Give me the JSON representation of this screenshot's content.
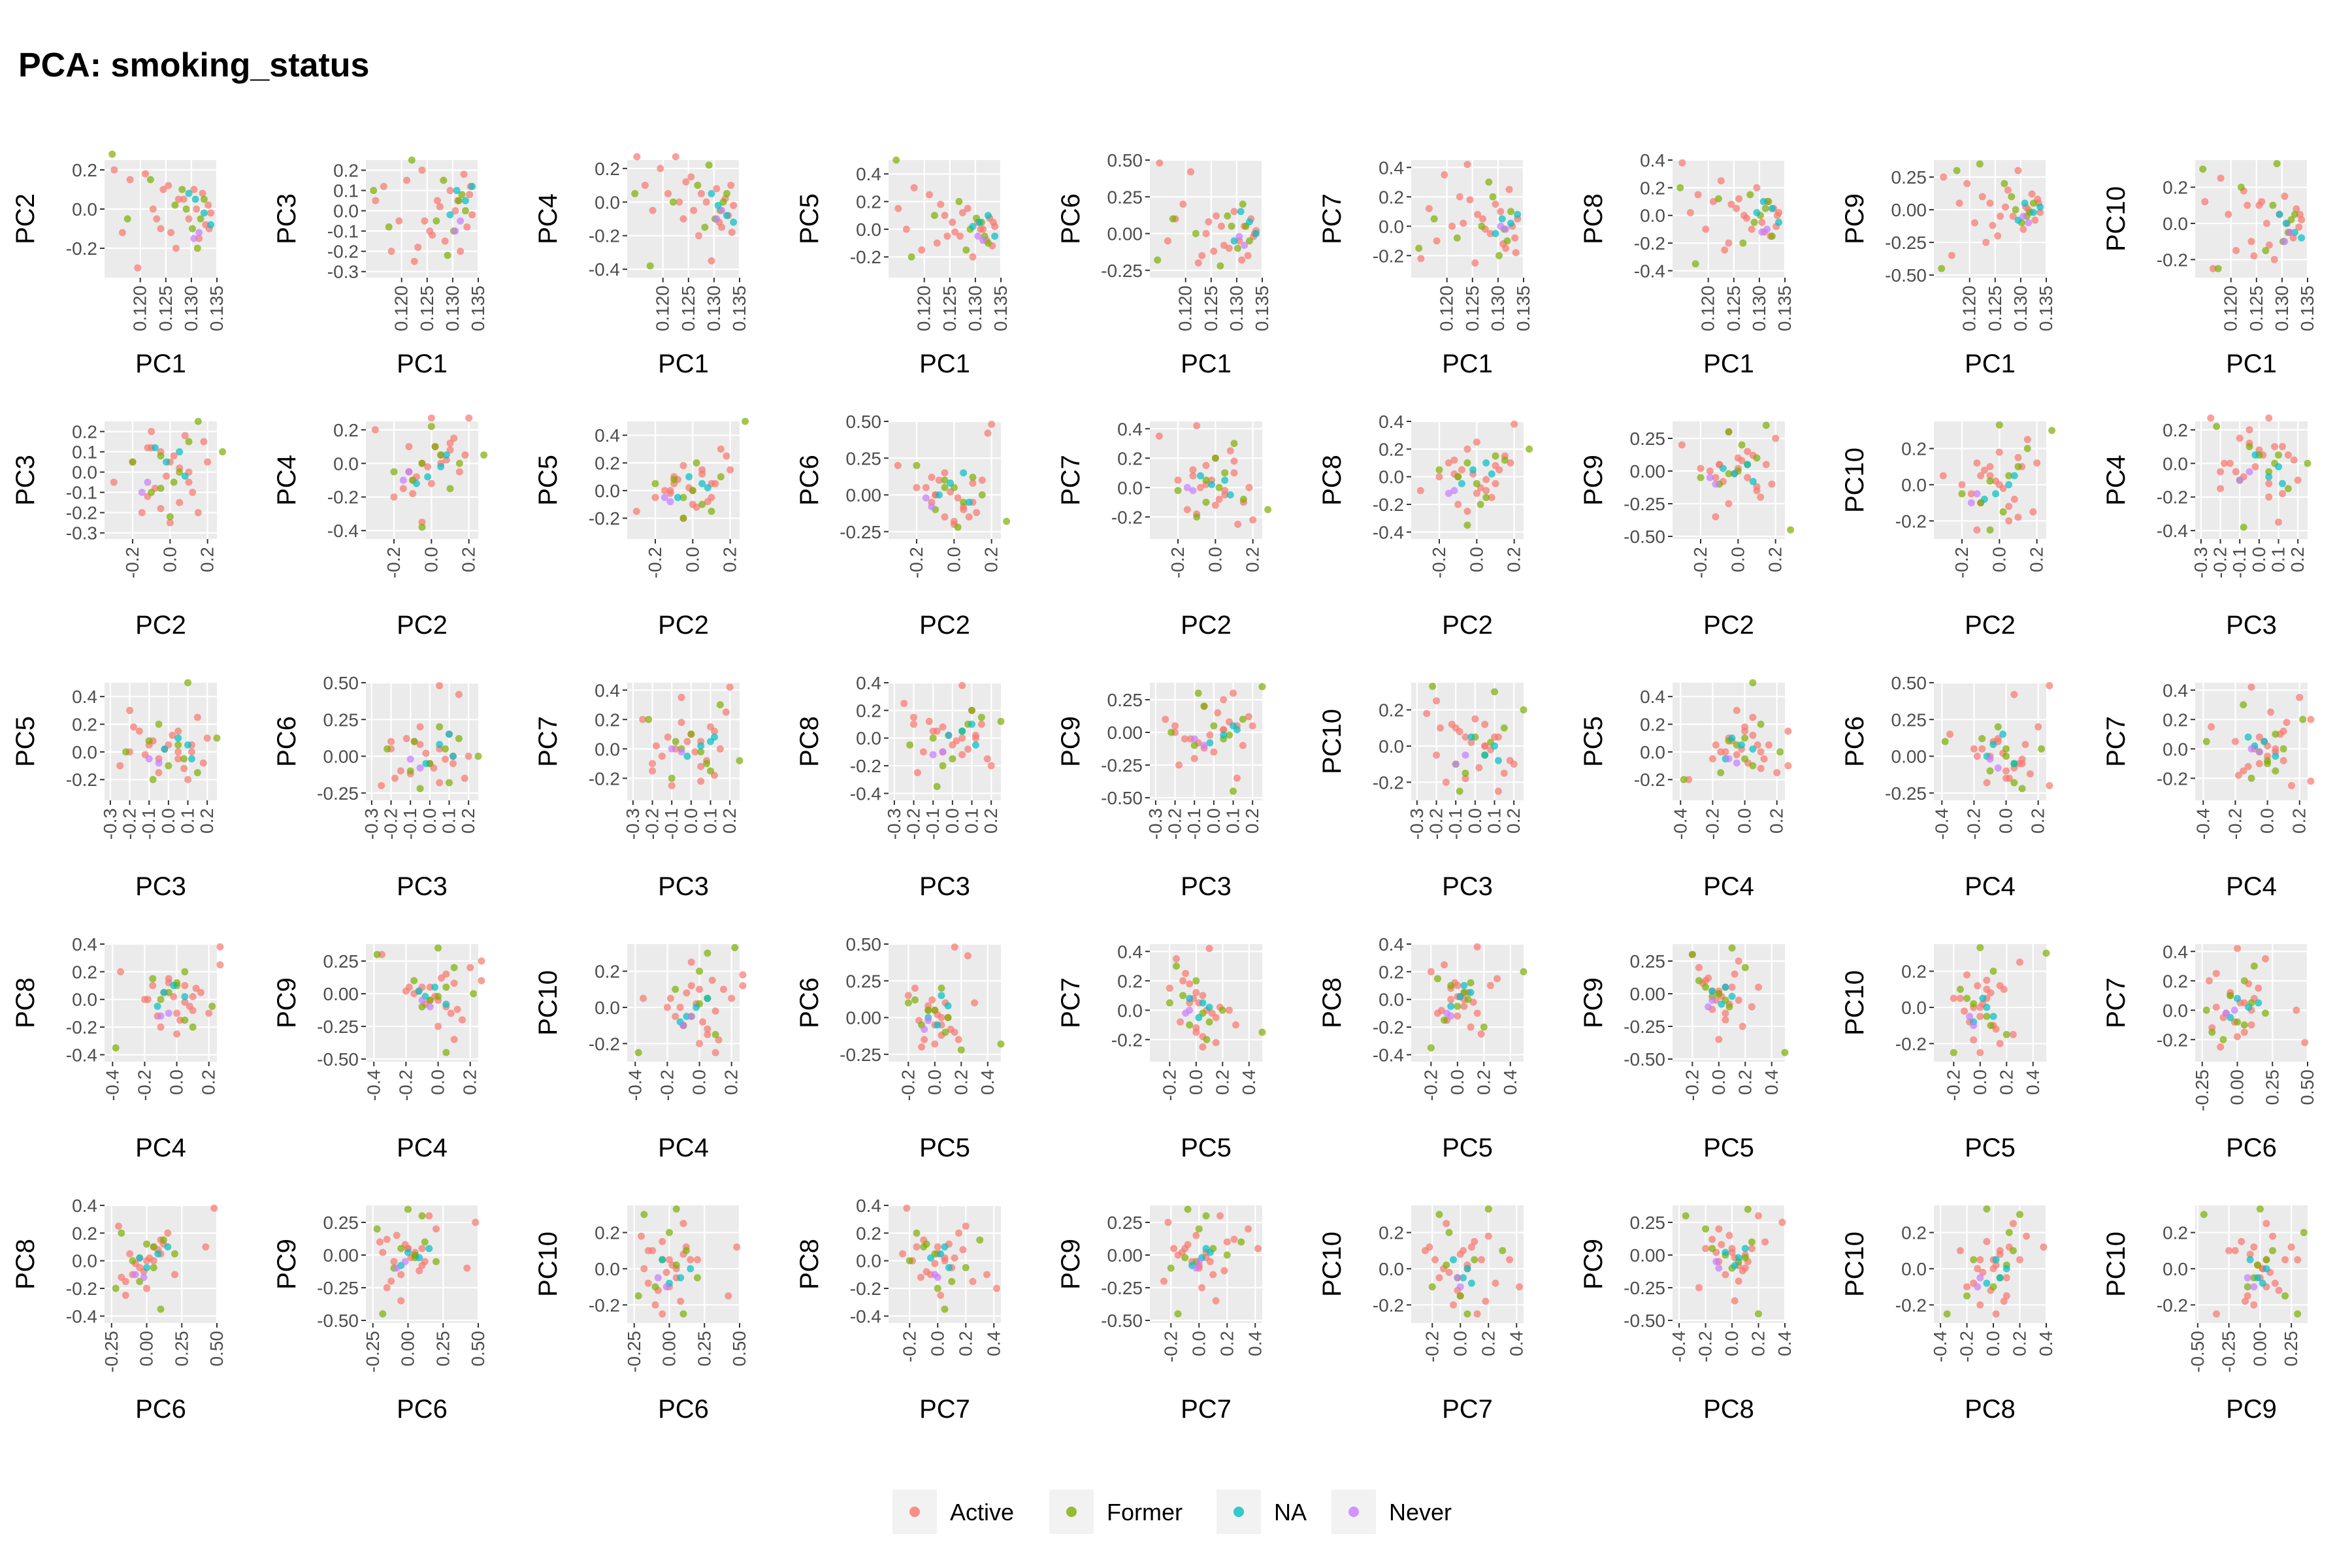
{
  "title": "PCA: smoking_status",
  "legend": {
    "placement": "bottom",
    "items": [
      {
        "label": "Active",
        "color": "#F8766D"
      },
      {
        "label": "Former",
        "color": "#7CAE00"
      },
      {
        "label": "NA",
        "color": "#00BFC4"
      },
      {
        "label": "Never",
        "color": "#C77CFF"
      }
    ]
  },
  "chart_data": {
    "type": "scatter",
    "layout": "pairs-grid",
    "grid": true,
    "panel_background": "#EBEBEB",
    "axes": {
      "PC1": {
        "range": [
          0.113,
          0.135
        ],
        "ticks": [
          "0.120",
          "0.125",
          "0.130",
          "0.135"
        ]
      },
      "PC2": {
        "range": [
          -0.35,
          0.25
        ],
        "ticks": [
          "-0.2",
          "0.0",
          "0.2"
        ]
      },
      "PC3": {
        "range": [
          -0.33,
          0.25
        ],
        "ticks": [
          "-0.3",
          "-0.2",
          "-0.1",
          "0.0",
          "0.1",
          "0.2"
        ]
      },
      "PC4": {
        "range": [
          -0.45,
          0.25
        ],
        "ticks": [
          "-0.4",
          "-0.2",
          "0.0",
          "0.2"
        ]
      },
      "PC5": {
        "range": [
          -0.35,
          0.5
        ],
        "ticks": [
          "-0.2",
          "0.0",
          "0.2",
          "0.4"
        ]
      },
      "PC6": {
        "range": [
          -0.3,
          0.5
        ],
        "ticks": [
          "-0.25",
          "0.00",
          "0.25",
          "0.50"
        ]
      },
      "PC7": {
        "range": [
          -0.35,
          0.45
        ],
        "ticks": [
          "-0.2",
          "0.0",
          "0.2",
          "0.4"
        ]
      },
      "PC8": {
        "range": [
          -0.45,
          0.4
        ],
        "ticks": [
          "-0.4",
          "-0.2",
          "0.0",
          "0.2",
          "0.4"
        ]
      },
      "PC9": {
        "range": [
          -0.52,
          0.38
        ],
        "ticks": [
          "-0.50",
          "-0.25",
          "0.00",
          "0.25"
        ]
      },
      "PC10": {
        "range": [
          -0.3,
          0.35
        ],
        "ticks": [
          "-0.2",
          "0.0",
          "0.2"
        ]
      }
    },
    "panels": [
      {
        "x": "PC1",
        "y": "PC2"
      },
      {
        "x": "PC1",
        "y": "PC3"
      },
      {
        "x": "PC1",
        "y": "PC4"
      },
      {
        "x": "PC1",
        "y": "PC5"
      },
      {
        "x": "PC1",
        "y": "PC6"
      },
      {
        "x": "PC1",
        "y": "PC7"
      },
      {
        "x": "PC1",
        "y": "PC8"
      },
      {
        "x": "PC1",
        "y": "PC9"
      },
      {
        "x": "PC1",
        "y": "PC10"
      },
      {
        "x": "PC2",
        "y": "PC3"
      },
      {
        "x": "PC2",
        "y": "PC4"
      },
      {
        "x": "PC2",
        "y": "PC5"
      },
      {
        "x": "PC2",
        "y": "PC6"
      },
      {
        "x": "PC2",
        "y": "PC7"
      },
      {
        "x": "PC2",
        "y": "PC8"
      },
      {
        "x": "PC2",
        "y": "PC9"
      },
      {
        "x": "PC2",
        "y": "PC10"
      },
      {
        "x": "PC3",
        "y": "PC4"
      },
      {
        "x": "PC3",
        "y": "PC5"
      },
      {
        "x": "PC3",
        "y": "PC6"
      },
      {
        "x": "PC3",
        "y": "PC7"
      },
      {
        "x": "PC3",
        "y": "PC8"
      },
      {
        "x": "PC3",
        "y": "PC9"
      },
      {
        "x": "PC3",
        "y": "PC10"
      },
      {
        "x": "PC4",
        "y": "PC5"
      },
      {
        "x": "PC4",
        "y": "PC6"
      },
      {
        "x": "PC4",
        "y": "PC7"
      },
      {
        "x": "PC4",
        "y": "PC8"
      },
      {
        "x": "PC4",
        "y": "PC9"
      },
      {
        "x": "PC4",
        "y": "PC10"
      },
      {
        "x": "PC5",
        "y": "PC6"
      },
      {
        "x": "PC5",
        "y": "PC7"
      },
      {
        "x": "PC5",
        "y": "PC8"
      },
      {
        "x": "PC5",
        "y": "PC9"
      },
      {
        "x": "PC5",
        "y": "PC10"
      },
      {
        "x": "PC6",
        "y": "PC7"
      },
      {
        "x": "PC6",
        "y": "PC8"
      },
      {
        "x": "PC6",
        "y": "PC9"
      },
      {
        "x": "PC6",
        "y": "PC10"
      },
      {
        "x": "PC7",
        "y": "PC8"
      },
      {
        "x": "PC7",
        "y": "PC9"
      },
      {
        "x": "PC7",
        "y": "PC10"
      },
      {
        "x": "PC8",
        "y": "PC9"
      },
      {
        "x": "PC8",
        "y": "PC10"
      },
      {
        "x": "PC9",
        "y": "PC10"
      }
    ],
    "samples": [
      {
        "g": "Active",
        "PC1": 0.1149,
        "PC2": 0.2,
        "PC3": 0.05,
        "PC4": 0.27,
        "PC5": 0.15,
        "PC6": 0.48,
        "PC7": -0.22,
        "PC8": 0.38,
        "PC9": 0.25,
        "PC10": 0.12
      },
      {
        "g": "Active",
        "PC1": 0.1165,
        "PC2": -0.12,
        "PC3": 0.12,
        "PC4": 0.1,
        "PC5": 0.0,
        "PC6": -0.05,
        "PC7": 0.12,
        "PC8": 0.02,
        "PC9": -0.35,
        "PC10": -0.25
      },
      {
        "g": "Active",
        "PC1": 0.118,
        "PC2": 0.15,
        "PC3": -0.2,
        "PC4": -0.05,
        "PC5": 0.3,
        "PC6": 0.1,
        "PC7": -0.1,
        "PC8": 0.15,
        "PC9": 0.05,
        "PC10": 0.25
      },
      {
        "g": "Active",
        "PC1": 0.1195,
        "PC2": -0.3,
        "PC3": -0.05,
        "PC4": 0.2,
        "PC5": -0.15,
        "PC6": 0.2,
        "PC7": 0.35,
        "PC8": -0.1,
        "PC9": 0.2,
        "PC10": 0.05
      },
      {
        "g": "Active",
        "PC1": 0.121,
        "PC2": 0.18,
        "PC3": 0.15,
        "PC4": 0.05,
        "PC5": 0.25,
        "PC6": 0.42,
        "PC7": 0.0,
        "PC8": 0.1,
        "PC9": -0.1,
        "PC10": -0.15
      },
      {
        "g": "Active",
        "PC1": 0.1225,
        "PC2": 0.0,
        "PC3": -0.25,
        "PC4": 0.27,
        "PC5": -0.1,
        "PC6": -0.2,
        "PC7": 0.2,
        "PC8": 0.25,
        "PC9": 0.1,
        "PC10": 0.18
      },
      {
        "g": "Active",
        "PC1": 0.124,
        "PC2": -0.1,
        "PC3": 0.2,
        "PC4": -0.1,
        "PC5": 0.1,
        "PC6": 0.0,
        "PC7": 0.42,
        "PC8": -0.2,
        "PC9": 0.05,
        "PC10": -0.1
      },
      {
        "g": "Active",
        "PC1": 0.1255,
        "PC2": 0.12,
        "PC3": -0.1,
        "PC4": 0.15,
        "PC5": 0.05,
        "PC6": -0.12,
        "PC7": -0.25,
        "PC8": 0.05,
        "PC9": -0.2,
        "PC10": 0.1
      },
      {
        "g": "Active",
        "PC1": 0.127,
        "PC2": -0.2,
        "PC3": 0.05,
        "PC4": -0.2,
        "PC5": -0.05,
        "PC6": 0.05,
        "PC7": 0.05,
        "PC8": 0.0,
        "PC9": 0.02,
        "PC10": 0.0
      },
      {
        "g": "Active",
        "PC1": 0.1285,
        "PC2": 0.05,
        "PC3": -0.15,
        "PC4": 0.0,
        "PC5": 0.15,
        "PC6": -0.1,
        "PC7": -0.05,
        "PC8": -0.1,
        "PC9": -0.05,
        "PC10": -0.2
      },
      {
        "g": "Active",
        "PC1": 0.1295,
        "PC2": -0.05,
        "PC3": 0.1,
        "PC4": -0.35,
        "PC5": -0.2,
        "PC6": 0.15,
        "PC7": 0.15,
        "PC8": 0.2,
        "PC9": 0.3,
        "PC10": 0.05
      },
      {
        "g": "Active",
        "PC1": 0.1305,
        "PC2": 0.1,
        "PC3": 0.0,
        "PC4": 0.08,
        "PC5": 0.05,
        "PC6": -0.05,
        "PC7": 0.1,
        "PC8": -0.05,
        "PC9": -0.15,
        "PC10": 0.15
      },
      {
        "g": "Active",
        "PC1": 0.1315,
        "PC2": -0.15,
        "PC3": -0.2,
        "PC4": -0.15,
        "PC5": 0.0,
        "PC6": 0.05,
        "PC7": -0.15,
        "PC8": 0.1,
        "PC9": 0.0,
        "PC10": -0.05
      },
      {
        "g": "Active",
        "PC1": 0.1322,
        "PC2": 0.08,
        "PC3": 0.18,
        "PC4": 0.02,
        "PC5": -0.08,
        "PC6": -0.15,
        "PC7": 0.25,
        "PC8": -0.15,
        "PC9": 0.12,
        "PC10": -0.08
      },
      {
        "g": "Active",
        "PC1": 0.1328,
        "PC2": -0.08,
        "PC3": -0.08,
        "PC4": -0.08,
        "PC5": 0.08,
        "PC6": 0.1,
        "PC7": 0.0,
        "PC8": 0.05,
        "PC9": -0.08,
        "PC10": 0.08
      },
      {
        "g": "Active",
        "PC1": 0.1333,
        "PC2": 0.02,
        "PC3": 0.08,
        "PC4": 0.1,
        "PC5": -0.12,
        "PC6": -0.02,
        "PC7": -0.08,
        "PC8": -0.08,
        "PC9": 0.08,
        "PC10": -0.02
      },
      {
        "g": "Active",
        "PC1": 0.1338,
        "PC2": -0.02,
        "PC3": -0.02,
        "PC4": -0.02,
        "PC5": 0.02,
        "PC6": 0.02,
        "PC7": 0.05,
        "PC8": 0.02,
        "PC9": -0.02,
        "PC10": 0.02
      },
      {
        "g": "Active",
        "PC1": 0.1275,
        "PC2": 0.05,
        "PC3": 0.02,
        "PC4": 0.05,
        "PC5": 0.12,
        "PC6": -0.08,
        "PC7": -0.02,
        "PC8": -0.02,
        "PC9": 0.15,
        "PC10": -0.12
      },
      {
        "g": "Active",
        "PC1": 0.126,
        "PC2": -0.12,
        "PC3": -0.12,
        "PC4": -0.05,
        "PC5": -0.02,
        "PC6": 0.12,
        "PC7": 0.08,
        "PC8": 0.12,
        "PC9": -0.05,
        "PC10": 0.12
      },
      {
        "g": "Active",
        "PC1": 0.131,
        "PC2": 0.0,
        "PC3": 0.05,
        "PC4": -0.12,
        "PC5": 0.0,
        "PC6": -0.18,
        "PC7": -0.12,
        "PC8": -0.12,
        "PC9": 0.02,
        "PC10": 0.0
      },
      {
        "g": "Active",
        "PC1": 0.1245,
        "PC2": 0.1,
        "PC3": -0.05,
        "PC4": 0.12,
        "PC5": -0.05,
        "PC6": 0.08,
        "PC7": 0.18,
        "PC8": 0.08,
        "PC9": -0.12,
        "PC10": -0.18
      },
      {
        "g": "Active",
        "PC1": 0.1335,
        "PC2": -0.1,
        "PC3": 0.12,
        "PC4": -0.18,
        "PC5": 0.05,
        "PC6": 0.0,
        "PC7": -0.18,
        "PC8": 0.0,
        "PC9": 0.05,
        "PC10": 0.05
      },
      {
        "g": "Active",
        "PC1": 0.1232,
        "PC2": -0.05,
        "PC3": -0.18,
        "PC4": 0.0,
        "PC5": 0.18,
        "PC6": -0.15,
        "PC7": 0.02,
        "PC8": -0.25,
        "PC9": -0.25,
        "PC10": 0.1
      },
      {
        "g": "Former",
        "PC1": 0.1145,
        "PC2": 0.28,
        "PC3": 0.1,
        "PC4": 0.05,
        "PC5": 0.5,
        "PC6": -0.18,
        "PC7": -0.15,
        "PC8": 0.2,
        "PC9": -0.45,
        "PC10": 0.3
      },
      {
        "g": "Former",
        "PC1": 0.1175,
        "PC2": -0.05,
        "PC3": -0.08,
        "PC4": -0.38,
        "PC5": -0.2,
        "PC6": 0.1,
        "PC7": 0.05,
        "PC8": -0.35,
        "PC9": 0.3,
        "PC10": -0.25
      },
      {
        "g": "Former",
        "PC1": 0.122,
        "PC2": 0.15,
        "PC3": 0.25,
        "PC4": 0.0,
        "PC5": 0.1,
        "PC6": 0.0,
        "PC7": -0.08,
        "PC8": 0.12,
        "PC9": 0.35,
        "PC10": 0.2
      },
      {
        "g": "Former",
        "PC1": 0.129,
        "PC2": 0.0,
        "PC3": -0.22,
        "PC4": 0.22,
        "PC5": 0.0,
        "PC6": 0.05,
        "PC7": 0.2,
        "PC8": -0.05,
        "PC9": 0.0,
        "PC10": 0.33
      },
      {
        "g": "Former",
        "PC1": 0.1312,
        "PC2": -0.2,
        "PC3": 0.05,
        "PC4": -0.05,
        "PC5": 0.05,
        "PC6": 0.2,
        "PC7": -0.02,
        "PC8": 0.05,
        "PC9": -0.05,
        "PC10": -0.05
      },
      {
        "g": "Former",
        "PC1": 0.1325,
        "PC2": 0.05,
        "PC3": 0.0,
        "PC4": 0.05,
        "PC5": -0.1,
        "PC6": -0.05,
        "PC7": 0.1,
        "PC8": -0.15,
        "PC9": 0.05,
        "PC10": 0.05
      },
      {
        "g": "Former",
        "PC1": 0.1302,
        "PC2": -0.1,
        "PC3": -0.1,
        "PC4": -0.1,
        "PC5": 0.08,
        "PC6": -0.1,
        "PC7": -0.2,
        "PC8": 0.0,
        "PC9": -0.1,
        "PC10": -0.1
      },
      {
        "g": "Former",
        "PC1": 0.1282,
        "PC2": 0.1,
        "PC3": 0.15,
        "PC4": -0.15,
        "PC5": -0.15,
        "PC6": 0.12,
        "PC7": 0.3,
        "PC8": 0.15,
        "PC9": 0.1,
        "PC10": 0.1
      },
      {
        "g": "Former",
        "PC1": 0.1268,
        "PC2": 0.02,
        "PC3": -0.05,
        "PC4": 0.1,
        "PC5": 0.2,
        "PC6": -0.22,
        "PC7": 0.0,
        "PC8": -0.2,
        "PC9": 0.2,
        "PC10": -0.15
      },
      {
        "g": "Former",
        "PC1": 0.1318,
        "PC2": -0.05,
        "PC3": 0.08,
        "PC4": 0.0,
        "PC5": -0.05,
        "PC6": 0.05,
        "PC7": -0.1,
        "PC8": 0.1,
        "PC9": -0.02,
        "PC10": 0.02
      },
      {
        "g": "NA",
        "PC1": 0.1308,
        "PC2": 0.05,
        "PC3": 0.1,
        "PC4": -0.02,
        "PC5": 0.05,
        "PC6": 0.15,
        "PC7": 0.05,
        "PC8": 0.1,
        "PC9": 0.05,
        "PC10": 0.0
      },
      {
        "g": "NA",
        "PC1": 0.1325,
        "PC2": -0.02,
        "PC3": 0.05,
        "PC4": -0.08,
        "PC5": 0.1,
        "PC6": 0.08,
        "PC7": 0.02,
        "PC8": 0.05,
        "PC9": -0.02,
        "PC10": -0.05
      },
      {
        "g": "NA",
        "PC1": 0.1338,
        "PC2": -0.08,
        "PC3": 0.12,
        "PC4": -0.12,
        "PC5": -0.05,
        "PC6": 0.0,
        "PC7": 0.08,
        "PC8": -0.05,
        "PC9": 0.02,
        "PC10": -0.08
      },
      {
        "g": "NA",
        "PC1": 0.1295,
        "PC2": 0.08,
        "PC3": -0.02,
        "PC4": 0.05,
        "PC5": 0.02,
        "PC6": -0.05,
        "PC7": -0.05,
        "PC8": 0.02,
        "PC9": -0.08,
        "PC10": 0.05
      },
      {
        "g": "Never",
        "PC1": 0.1315,
        "PC2": -0.12,
        "PC3": -0.05,
        "PC4": -0.05,
        "PC5": -0.08,
        "PC6": -0.08,
        "PC7": -0.02,
        "PC8": -0.1,
        "PC9": -0.1,
        "PC10": -0.05
      },
      {
        "g": "Never",
        "PC1": 0.1305,
        "PC2": -0.15,
        "PC3": -0.1,
        "PC4": -0.1,
        "PC5": -0.05,
        "PC6": -0.02,
        "PC7": 0.0,
        "PC8": -0.12,
        "PC9": -0.05,
        "PC10": -0.1
      }
    ]
  }
}
